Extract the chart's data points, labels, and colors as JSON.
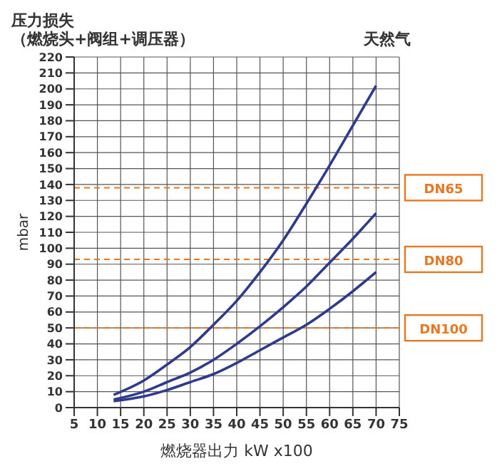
{
  "chart_data": {
    "type": "line",
    "title": "压力损失",
    "subtitle": "（燃烧头+阀组+调压器）",
    "annotations": [
      "天然气"
    ],
    "xlabel": "燃烧器出力  kW x100",
    "ylabel": "mbar",
    "x": [
      13.5,
      20,
      25,
      30,
      35,
      40,
      45,
      50,
      55,
      60,
      65,
      70
    ],
    "series": [
      {
        "color": "#2e3a8c",
        "values": [
          8,
          17,
          27,
          38,
          52,
          67,
          85,
          105,
          128,
          152,
          177,
          202
        ]
      },
      {
        "color": "#2e3a8c",
        "values": [
          5,
          10,
          16,
          22,
          30,
          40,
          51,
          63,
          76,
          91,
          106,
          122
        ]
      },
      {
        "color": "#2e3a8c",
        "values": [
          4,
          7,
          11,
          16,
          21,
          28,
          36,
          44,
          52,
          62,
          73,
          85
        ]
      }
    ],
    "xlim": [
      5,
      75
    ],
    "xticks": [
      5,
      10,
      15,
      20,
      25,
      30,
      35,
      40,
      45,
      50,
      55,
      60,
      65,
      70,
      75
    ],
    "ylim": [
      0,
      220
    ],
    "yticks": [
      0,
      10,
      20,
      30,
      40,
      50,
      60,
      70,
      80,
      90,
      100,
      110,
      120,
      130,
      140,
      150,
      160,
      170,
      180,
      190,
      200,
      210,
      220
    ],
    "ref_lines": [
      {
        "axis": "y",
        "value": 138,
        "label": "DN65",
        "color": "#e87722",
        "line_style": "dashed"
      },
      {
        "axis": "y",
        "value": 93,
        "label": "DN80",
        "color": "#e87722",
        "line_style": "dashed"
      },
      {
        "axis": "y",
        "value": 50,
        "label": "DN100",
        "color": "#e87722",
        "line_style": "dashed"
      }
    ],
    "grid": true,
    "marker": "none",
    "line_style": "solid"
  }
}
